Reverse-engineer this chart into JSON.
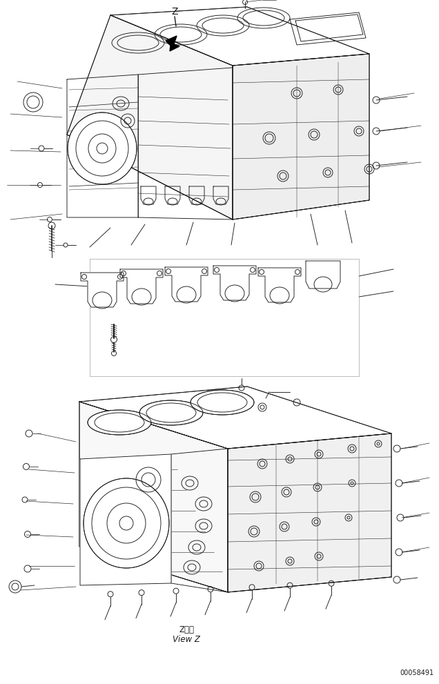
{
  "bg_color": "#ffffff",
  "line_color": "#1a1a1a",
  "lw": 0.65,
  "figsize": [
    6.36,
    9.91
  ],
  "dpi": 100,
  "label1": "Z　視",
  "label2": "View Z",
  "part_number": "00058491"
}
